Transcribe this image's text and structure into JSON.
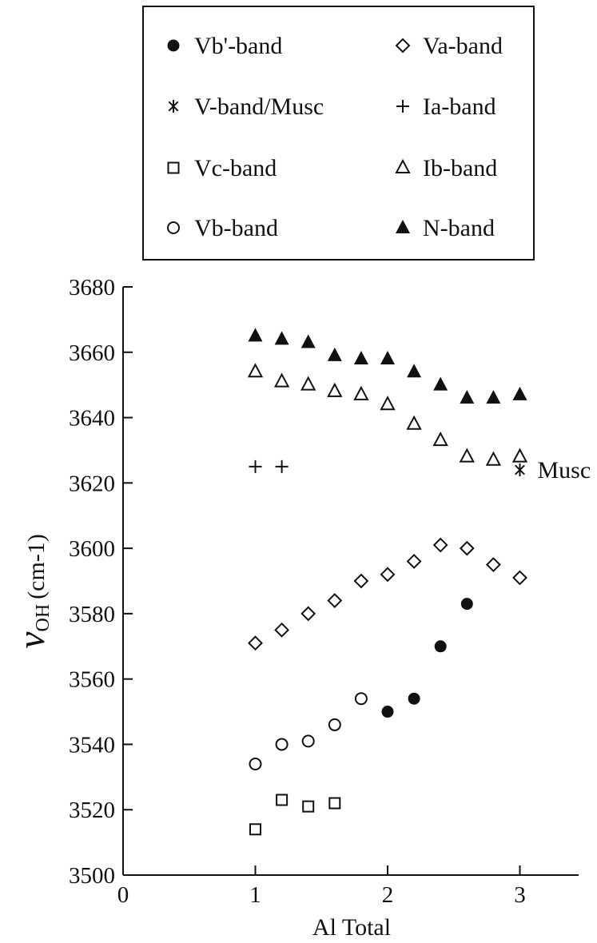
{
  "chart_data": {
    "type": "scatter",
    "xlabel": "Al Total",
    "ylabel": {
      "symbol": "ν",
      "subscript": "OH",
      "unit": "(cm-1)"
    },
    "xlim": [
      0,
      3.5
    ],
    "ylim": [
      3500,
      3680
    ],
    "x_ticks": [
      0,
      1,
      2,
      3
    ],
    "y_ticks": [
      3500,
      3520,
      3540,
      3560,
      3580,
      3600,
      3620,
      3640,
      3660,
      3680
    ],
    "grid": false,
    "legend_placement": "top",
    "series": [
      {
        "name": "Vb'-band",
        "marker": "filled-circle",
        "points": [
          [
            2.0,
            3550
          ],
          [
            2.2,
            3554
          ],
          [
            2.4,
            3570
          ],
          [
            2.6,
            3583
          ]
        ]
      },
      {
        "name": "Va-band",
        "marker": "diamond",
        "points": [
          [
            1.0,
            3571
          ],
          [
            1.2,
            3575
          ],
          [
            1.4,
            3580
          ],
          [
            1.6,
            3584
          ],
          [
            1.8,
            3590
          ],
          [
            2.0,
            3592
          ],
          [
            2.2,
            3596
          ],
          [
            2.4,
            3601
          ],
          [
            2.6,
            3600
          ],
          [
            2.8,
            3595
          ],
          [
            3.0,
            3591
          ]
        ]
      },
      {
        "name": "V-band/Musc",
        "marker": "asterisk",
        "points": [
          [
            3.0,
            3624
          ]
        ]
      },
      {
        "name": "Ia-band",
        "marker": "plus",
        "points": [
          [
            1.0,
            3625
          ],
          [
            1.2,
            3625
          ]
        ]
      },
      {
        "name": "Vc-band",
        "marker": "square",
        "points": [
          [
            1.0,
            3514
          ],
          [
            1.2,
            3523
          ],
          [
            1.4,
            3521
          ],
          [
            1.6,
            3522
          ]
        ]
      },
      {
        "name": "Ib-band",
        "marker": "open-triangle",
        "points": [
          [
            1.0,
            3654
          ],
          [
            1.2,
            3651
          ],
          [
            1.4,
            3650
          ],
          [
            1.6,
            3648
          ],
          [
            1.8,
            3647
          ],
          [
            2.0,
            3644
          ],
          [
            2.2,
            3638
          ],
          [
            2.4,
            3633
          ],
          [
            2.6,
            3628
          ],
          [
            2.8,
            3627
          ],
          [
            3.0,
            3628
          ]
        ]
      },
      {
        "name": "Vb-band",
        "marker": "open-circle",
        "points": [
          [
            1.0,
            3534
          ],
          [
            1.2,
            3540
          ],
          [
            1.4,
            3541
          ],
          [
            1.6,
            3546
          ],
          [
            1.8,
            3554
          ]
        ]
      },
      {
        "name": "N-band",
        "marker": "filled-triangle",
        "points": [
          [
            1.0,
            3665
          ],
          [
            1.2,
            3664
          ],
          [
            1.4,
            3663
          ],
          [
            1.6,
            3659
          ],
          [
            1.8,
            3658
          ],
          [
            2.0,
            3658
          ],
          [
            2.2,
            3654
          ],
          [
            2.4,
            3650
          ],
          [
            2.6,
            3646
          ],
          [
            2.8,
            3646
          ],
          [
            3.0,
            3647
          ]
        ]
      }
    ],
    "annotations": [
      {
        "text": "Musc",
        "x": 3.0,
        "y": 3624
      }
    ]
  }
}
